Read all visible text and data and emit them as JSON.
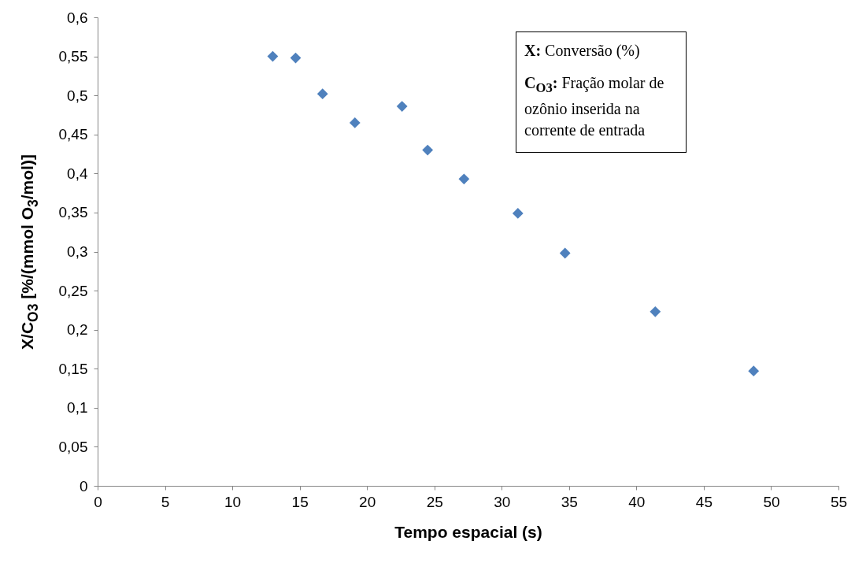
{
  "chart_data": {
    "type": "scatter",
    "xlabel": "Tempo espacial (s)",
    "ylabel": "X/C$_{O3}$ [%/(mmol O$_{3}$/mol)]",
    "x": [
      13.0,
      14.7,
      16.7,
      19.1,
      22.6,
      24.5,
      27.2,
      31.2,
      34.7,
      41.4,
      48.7
    ],
    "series": [
      {
        "color": "#4f81bd",
        "values": [
          0.55,
          0.548,
          0.502,
          0.465,
          0.486,
          0.43,
          0.393,
          0.349,
          0.298,
          0.223,
          0.147
        ]
      }
    ],
    "xlim": [
      0,
      55
    ],
    "xticks": [
      0,
      5,
      10,
      15,
      20,
      25,
      30,
      35,
      40,
      45,
      50,
      55
    ],
    "ylim": [
      0,
      0.6
    ],
    "yticks": [
      0,
      {
        "value": 0.05,
        "label": "0,05"
      },
      {
        "value": 0.1,
        "label": "0,1"
      },
      {
        "value": 0.15,
        "label": "0,15"
      },
      {
        "value": 0.2,
        "label": "0,2"
      },
      {
        "value": 0.25,
        "label": "0,25"
      },
      {
        "value": 0.3,
        "label": "0,3"
      },
      {
        "value": 0.35,
        "label": "0,35"
      },
      {
        "value": 0.4,
        "label": "0,4"
      },
      {
        "value": 0.45,
        "label": "0,45"
      },
      {
        "value": 0.5,
        "label": "0,5"
      },
      {
        "value": 0.55,
        "label": "0,55"
      },
      {
        "value": 0.6,
        "label": "0,6"
      }
    ],
    "grid": false,
    "marker": "diamond",
    "annotations": [
      "X: Conversão (%)",
      "C$_{O3}$: Fração molar de ozônio inserida na corrente de entrada"
    ]
  }
}
